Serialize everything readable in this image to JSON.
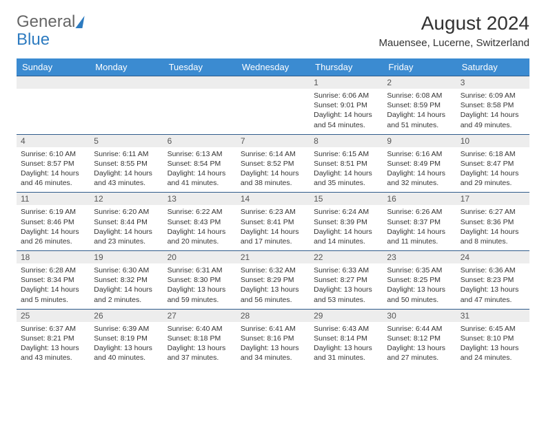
{
  "brand": {
    "part1": "General",
    "part2": "Blue"
  },
  "title": "August 2024",
  "location": "Mauensee, Lucerne, Switzerland",
  "colors": {
    "header_bg": "#3b8bd1",
    "header_text": "#ffffff",
    "daynum_bg": "#ededed",
    "border": "#2d5a8a",
    "brand_blue": "#2d7bc0"
  },
  "dayHeaders": [
    "Sunday",
    "Monday",
    "Tuesday",
    "Wednesday",
    "Thursday",
    "Friday",
    "Saturday"
  ],
  "weeks": [
    [
      null,
      null,
      null,
      null,
      {
        "n": "1",
        "sr": "6:06 AM",
        "ss": "9:01 PM",
        "dl": "14 hours and 54 minutes."
      },
      {
        "n": "2",
        "sr": "6:08 AM",
        "ss": "8:59 PM",
        "dl": "14 hours and 51 minutes."
      },
      {
        "n": "3",
        "sr": "6:09 AM",
        "ss": "8:58 PM",
        "dl": "14 hours and 49 minutes."
      }
    ],
    [
      {
        "n": "4",
        "sr": "6:10 AM",
        "ss": "8:57 PM",
        "dl": "14 hours and 46 minutes."
      },
      {
        "n": "5",
        "sr": "6:11 AM",
        "ss": "8:55 PM",
        "dl": "14 hours and 43 minutes."
      },
      {
        "n": "6",
        "sr": "6:13 AM",
        "ss": "8:54 PM",
        "dl": "14 hours and 41 minutes."
      },
      {
        "n": "7",
        "sr": "6:14 AM",
        "ss": "8:52 PM",
        "dl": "14 hours and 38 minutes."
      },
      {
        "n": "8",
        "sr": "6:15 AM",
        "ss": "8:51 PM",
        "dl": "14 hours and 35 minutes."
      },
      {
        "n": "9",
        "sr": "6:16 AM",
        "ss": "8:49 PM",
        "dl": "14 hours and 32 minutes."
      },
      {
        "n": "10",
        "sr": "6:18 AM",
        "ss": "8:47 PM",
        "dl": "14 hours and 29 minutes."
      }
    ],
    [
      {
        "n": "11",
        "sr": "6:19 AM",
        "ss": "8:46 PM",
        "dl": "14 hours and 26 minutes."
      },
      {
        "n": "12",
        "sr": "6:20 AM",
        "ss": "8:44 PM",
        "dl": "14 hours and 23 minutes."
      },
      {
        "n": "13",
        "sr": "6:22 AM",
        "ss": "8:43 PM",
        "dl": "14 hours and 20 minutes."
      },
      {
        "n": "14",
        "sr": "6:23 AM",
        "ss": "8:41 PM",
        "dl": "14 hours and 17 minutes."
      },
      {
        "n": "15",
        "sr": "6:24 AM",
        "ss": "8:39 PM",
        "dl": "14 hours and 14 minutes."
      },
      {
        "n": "16",
        "sr": "6:26 AM",
        "ss": "8:37 PM",
        "dl": "14 hours and 11 minutes."
      },
      {
        "n": "17",
        "sr": "6:27 AM",
        "ss": "8:36 PM",
        "dl": "14 hours and 8 minutes."
      }
    ],
    [
      {
        "n": "18",
        "sr": "6:28 AM",
        "ss": "8:34 PM",
        "dl": "14 hours and 5 minutes."
      },
      {
        "n": "19",
        "sr": "6:30 AM",
        "ss": "8:32 PM",
        "dl": "14 hours and 2 minutes."
      },
      {
        "n": "20",
        "sr": "6:31 AM",
        "ss": "8:30 PM",
        "dl": "13 hours and 59 minutes."
      },
      {
        "n": "21",
        "sr": "6:32 AM",
        "ss": "8:29 PM",
        "dl": "13 hours and 56 minutes."
      },
      {
        "n": "22",
        "sr": "6:33 AM",
        "ss": "8:27 PM",
        "dl": "13 hours and 53 minutes."
      },
      {
        "n": "23",
        "sr": "6:35 AM",
        "ss": "8:25 PM",
        "dl": "13 hours and 50 minutes."
      },
      {
        "n": "24",
        "sr": "6:36 AM",
        "ss": "8:23 PM",
        "dl": "13 hours and 47 minutes."
      }
    ],
    [
      {
        "n": "25",
        "sr": "6:37 AM",
        "ss": "8:21 PM",
        "dl": "13 hours and 43 minutes."
      },
      {
        "n": "26",
        "sr": "6:39 AM",
        "ss": "8:19 PM",
        "dl": "13 hours and 40 minutes."
      },
      {
        "n": "27",
        "sr": "6:40 AM",
        "ss": "8:18 PM",
        "dl": "13 hours and 37 minutes."
      },
      {
        "n": "28",
        "sr": "6:41 AM",
        "ss": "8:16 PM",
        "dl": "13 hours and 34 minutes."
      },
      {
        "n": "29",
        "sr": "6:43 AM",
        "ss": "8:14 PM",
        "dl": "13 hours and 31 minutes."
      },
      {
        "n": "30",
        "sr": "6:44 AM",
        "ss": "8:12 PM",
        "dl": "13 hours and 27 minutes."
      },
      {
        "n": "31",
        "sr": "6:45 AM",
        "ss": "8:10 PM",
        "dl": "13 hours and 24 minutes."
      }
    ]
  ],
  "labels": {
    "sunrise": "Sunrise: ",
    "sunset": "Sunset: ",
    "daylight": "Daylight: "
  }
}
